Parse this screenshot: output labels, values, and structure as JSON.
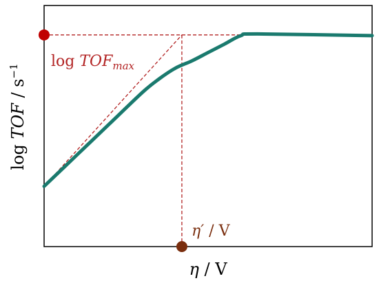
{
  "chart_data": {
    "type": "line",
    "x_axis_label": {
      "symbol": "η",
      "unit": " / V"
    },
    "y_axis_label": {
      "prefix": "log ",
      "symbol": "TOF",
      "unit": " / s",
      "sup": "−1"
    },
    "annotations": {
      "tof_max": {
        "prefix": "log ",
        "symbol": "TOF",
        "subscript": "max",
        "color": "#b22222"
      },
      "eta_prime": {
        "symbol": "η′",
        "unit": " / V",
        "color": "#7a2e0e"
      }
    },
    "xlim": [
      0,
      1
    ],
    "ylim": [
      0,
      1
    ],
    "series": [
      {
        "color": "#1a7a6e",
        "x": [
          0.0,
          0.1,
          0.2,
          0.3,
          0.35,
          0.4,
          0.45,
          0.5,
          0.55,
          0.6,
          0.65,
          1.0
        ],
        "y": [
          0.25,
          0.38,
          0.51,
          0.64,
          0.695,
          0.74,
          0.77,
          0.805,
          0.84,
          0.875,
          0.882,
          0.875
        ]
      }
    ],
    "guide_lines": {
      "tof_max_level": 0.878,
      "eta_prime": 0.42,
      "color": "#b22222"
    }
  }
}
